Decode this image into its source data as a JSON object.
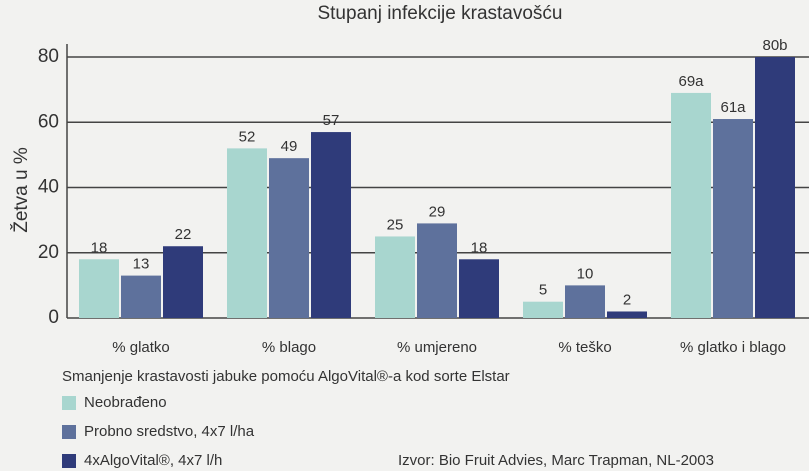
{
  "chart_data": {
    "type": "bar",
    "title": "Stupanj infekcije krastavošću",
    "ylabel": "Žetva u %",
    "caption": "Smanjenje krastavosti jabuke pomoću AlgoVital®-a kod sorte Elstar",
    "source": "Izvor: Bio Fruit Advies, Marc Trapman, NL-2003",
    "categories": [
      "% glatko",
      "% blago",
      "% umjereno",
      "% teško",
      "% glatko i blago"
    ],
    "series": [
      {
        "name": "Neobrađeno",
        "color": "#a8d6cf",
        "values": [
          18,
          52,
          25,
          5,
          69
        ],
        "value_labels": [
          "18",
          "52",
          "25",
          "5",
          "69a"
        ]
      },
      {
        "name": "Probno sredstvo, 4x7 l/ha",
        "color": "#5e719c",
        "values": [
          13,
          49,
          29,
          10,
          61
        ],
        "value_labels": [
          "13",
          "49",
          "29",
          "10",
          "61a"
        ]
      },
      {
        "name": "4xAlgoVital®, 4x7 l/h",
        "color": "#2f3b7a",
        "values": [
          22,
          57,
          18,
          2,
          80
        ],
        "value_labels": [
          "22",
          "57",
          "18",
          "2",
          "80b"
        ]
      }
    ],
    "ylim": [
      0,
      84
    ],
    "yticks": [
      0,
      20,
      40,
      60,
      80
    ],
    "grid": true
  }
}
